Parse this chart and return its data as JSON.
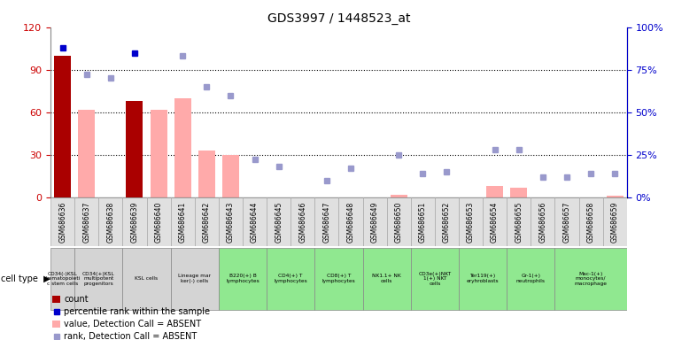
{
  "title": "GDS3997 / 1448523_at",
  "samples": [
    "GSM686636",
    "GSM686637",
    "GSM686638",
    "GSM686639",
    "GSM686640",
    "GSM686641",
    "GSM686642",
    "GSM686643",
    "GSM686644",
    "GSM686645",
    "GSM686646",
    "GSM686647",
    "GSM686648",
    "GSM686649",
    "GSM686650",
    "GSM686651",
    "GSM686652",
    "GSM686653",
    "GSM686654",
    "GSM686655",
    "GSM686656",
    "GSM686657",
    "GSM686658",
    "GSM686659"
  ],
  "count_values": [
    100,
    0,
    0,
    68,
    0,
    0,
    0,
    0,
    0,
    0,
    0,
    0,
    0,
    0,
    0,
    0,
    0,
    0,
    0,
    0,
    0,
    0,
    0,
    0
  ],
  "value_absent": [
    0,
    62,
    0,
    0,
    62,
    70,
    33,
    30,
    0,
    0,
    0,
    0,
    0,
    0,
    2,
    0,
    0,
    0,
    8,
    7,
    0,
    0,
    0,
    1
  ],
  "rank_absent": [
    0,
    72,
    70,
    0,
    0,
    83,
    65,
    60,
    22,
    18,
    0,
    10,
    17,
    0,
    25,
    14,
    15,
    0,
    28,
    28,
    12,
    12,
    14,
    14
  ],
  "rank_present": [
    88,
    0,
    0,
    85,
    0,
    0,
    0,
    0,
    0,
    0,
    0,
    0,
    0,
    0,
    0,
    0,
    0,
    0,
    0,
    0,
    0,
    0,
    0,
    0
  ],
  "cell_type_groups": [
    {
      "label": "CD34(-)KSL\nhematopoieti\nc stem cells",
      "start": 0,
      "end": 0,
      "color": "#d4d4d4"
    },
    {
      "label": "CD34(+)KSL\nmultipotent\nprogenitors",
      "start": 1,
      "end": 2,
      "color": "#d4d4d4"
    },
    {
      "label": "KSL cells",
      "start": 3,
      "end": 4,
      "color": "#d4d4d4"
    },
    {
      "label": "Lineage mar\nker(-) cells",
      "start": 5,
      "end": 6,
      "color": "#d4d4d4"
    },
    {
      "label": "B220(+) B\nlymphocytes",
      "start": 7,
      "end": 8,
      "color": "#90e890"
    },
    {
      "label": "CD4(+) T\nlymphocytes",
      "start": 9,
      "end": 10,
      "color": "#90e890"
    },
    {
      "label": "CD8(+) T\nlymphocytes",
      "start": 11,
      "end": 12,
      "color": "#90e890"
    },
    {
      "label": "NK1.1+ NK\ncells",
      "start": 13,
      "end": 14,
      "color": "#90e890"
    },
    {
      "label": "CD3e(+)NKT\n1(+) NKT\ncells",
      "start": 15,
      "end": 16,
      "color": "#90e890"
    },
    {
      "label": "Ter119(+)\neryhroblasts",
      "start": 17,
      "end": 18,
      "color": "#90e890"
    },
    {
      "label": "Gr-1(+)\nneutrophils",
      "start": 19,
      "end": 20,
      "color": "#90e890"
    },
    {
      "label": "Mac-1(+)\nmonocytes/\nmacrophage",
      "start": 21,
      "end": 23,
      "color": "#90e890"
    }
  ],
  "ylim": [
    0,
    120
  ],
  "ylim_right": [
    0,
    100
  ],
  "bar_color_count": "#aa0000",
  "bar_color_absent": "#ffaaaa",
  "dot_color_present": "#0000cc",
  "dot_color_absent": "#9999cc",
  "left_tick_color": "#cc0000",
  "right_tick_color": "#0000cc",
  "legend": [
    {
      "color": "#aa0000",
      "type": "rect",
      "label": "count"
    },
    {
      "color": "#0000cc",
      "type": "square",
      "label": "percentile rank within the sample"
    },
    {
      "color": "#ffaaaa",
      "type": "rect",
      "label": "value, Detection Call = ABSENT"
    },
    {
      "color": "#9999cc",
      "type": "square",
      "label": "rank, Detection Call = ABSENT"
    }
  ]
}
